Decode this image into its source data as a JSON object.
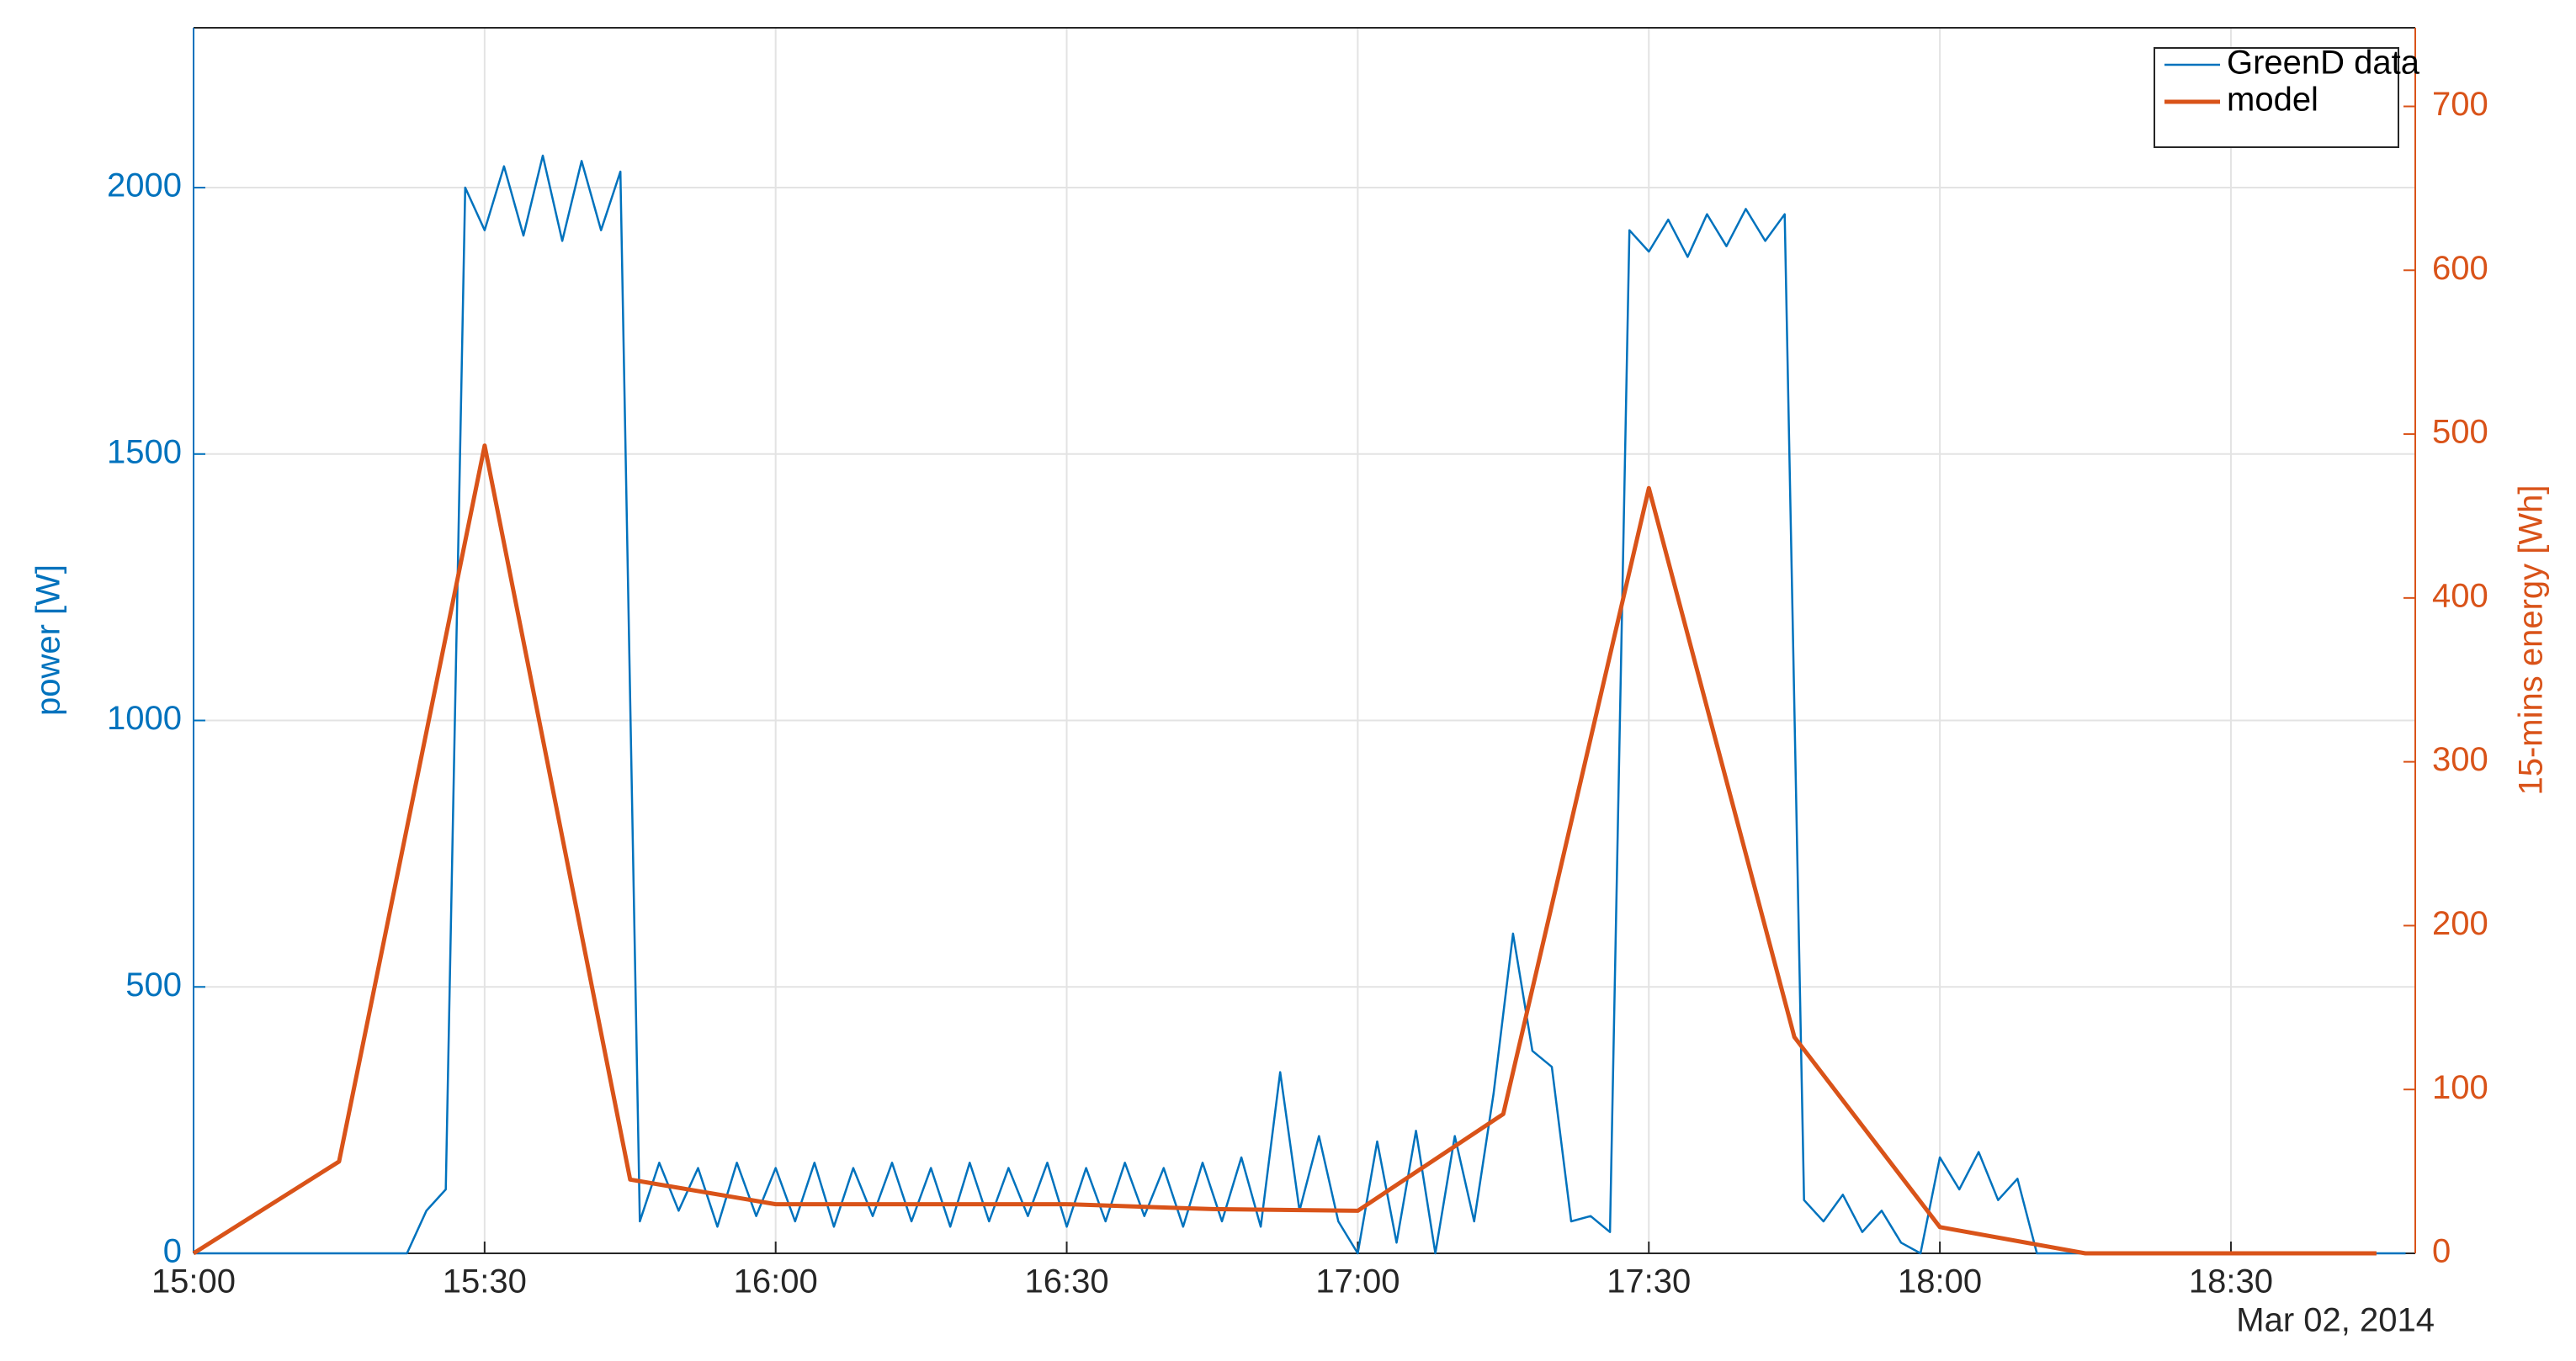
{
  "chart_data": {
    "type": "line",
    "y_label": "power [W]",
    "y2_label": "15-mins energy [Wh]",
    "date_label": "Mar 02, 2014",
    "xlim": [
      "15:00",
      "18:49"
    ],
    "xticks": [
      "15:00",
      "15:30",
      "16:00",
      "16:30",
      "17:00",
      "17:30",
      "18:00",
      "18:30"
    ],
    "ylim": [
      0,
      2300
    ],
    "yticks": [
      0,
      500,
      1000,
      1500,
      2000
    ],
    "y2lim": [
      0,
      748
    ],
    "y2ticks": [
      0,
      100,
      200,
      300,
      400,
      500,
      600,
      700
    ],
    "y_color": "#0072bd",
    "y2_color": "#d95319",
    "grid": true,
    "legend": "upper right",
    "series": [
      {
        "name": "GreenD data",
        "color": "#0072bd",
        "x": [
          "15:00",
          "15:02",
          "15:04",
          "15:06",
          "15:08",
          "15:10",
          "15:12",
          "15:14",
          "15:16",
          "15:18",
          "15:20",
          "15:22",
          "15:24",
          "15:26",
          "15:28",
          "15:30",
          "15:32",
          "15:34",
          "15:36",
          "15:38",
          "15:40",
          "15:42",
          "15:44",
          "15:46",
          "15:48",
          "15:50",
          "15:52",
          "15:54",
          "15:56",
          "15:58",
          "16:00",
          "16:02",
          "16:04",
          "16:06",
          "16:08",
          "16:10",
          "16:12",
          "16:14",
          "16:16",
          "16:18",
          "16:20",
          "16:22",
          "16:24",
          "16:26",
          "16:28",
          "16:30",
          "16:32",
          "16:34",
          "16:36",
          "16:38",
          "16:40",
          "16:42",
          "16:44",
          "16:46",
          "16:48",
          "16:50",
          "16:52",
          "16:54",
          "16:56",
          "16:58",
          "17:00",
          "17:02",
          "17:04",
          "17:06",
          "17:08",
          "17:10",
          "17:12",
          "17:14",
          "17:16",
          "17:18",
          "17:20",
          "17:22",
          "17:24",
          "17:26",
          "17:28",
          "17:30",
          "17:32",
          "17:34",
          "17:36",
          "17:38",
          "17:40",
          "17:42",
          "17:44",
          "17:46",
          "17:48",
          "17:50",
          "17:52",
          "17:54",
          "17:56",
          "17:58",
          "18:00",
          "18:02",
          "18:04",
          "18:06",
          "18:08",
          "18:10",
          "18:12",
          "18:14",
          "18:16",
          "18:18",
          "18:20",
          "18:22",
          "18:24",
          "18:26",
          "18:28",
          "18:30",
          "18:32",
          "18:34",
          "18:36",
          "18:38",
          "18:40",
          "18:42",
          "18:44",
          "18:46",
          "18:48"
        ],
        "values": [
          0,
          0,
          0,
          0,
          0,
          0,
          0,
          0,
          0,
          0,
          0,
          0,
          80,
          120,
          2000,
          1920,
          2040,
          1910,
          2060,
          1900,
          2050,
          1920,
          2030,
          60,
          170,
          80,
          160,
          50,
          170,
          70,
          160,
          60,
          170,
          50,
          160,
          70,
          170,
          60,
          160,
          50,
          170,
          60,
          160,
          70,
          170,
          50,
          160,
          60,
          170,
          70,
          160,
          50,
          170,
          60,
          180,
          50,
          340,
          80,
          220,
          60,
          0,
          210,
          20,
          230,
          0,
          220,
          60,
          300,
          600,
          380,
          350,
          60,
          70,
          40,
          1920,
          1880,
          1940,
          1870,
          1950,
          1890,
          1960,
          1900,
          1950,
          100,
          60,
          110,
          40,
          80,
          20,
          0,
          180,
          120,
          190,
          100,
          140,
          0,
          0,
          0,
          0,
          0,
          0,
          0,
          0,
          0,
          0,
          0,
          0,
          0,
          0,
          0,
          0,
          0,
          0,
          0,
          0
        ]
      },
      {
        "name": "model",
        "color": "#d95319",
        "axis": "y2",
        "x": [
          "15:00",
          "15:15",
          "15:30",
          "15:45",
          "16:00",
          "16:15",
          "16:30",
          "16:45",
          "17:00",
          "17:15",
          "17:30",
          "17:45",
          "18:00",
          "18:15",
          "18:30",
          "18:45"
        ],
        "values": [
          0,
          56,
          493,
          45,
          30,
          30,
          30,
          27,
          26,
          85,
          467,
          132,
          16,
          0,
          0,
          0
        ]
      }
    ]
  }
}
